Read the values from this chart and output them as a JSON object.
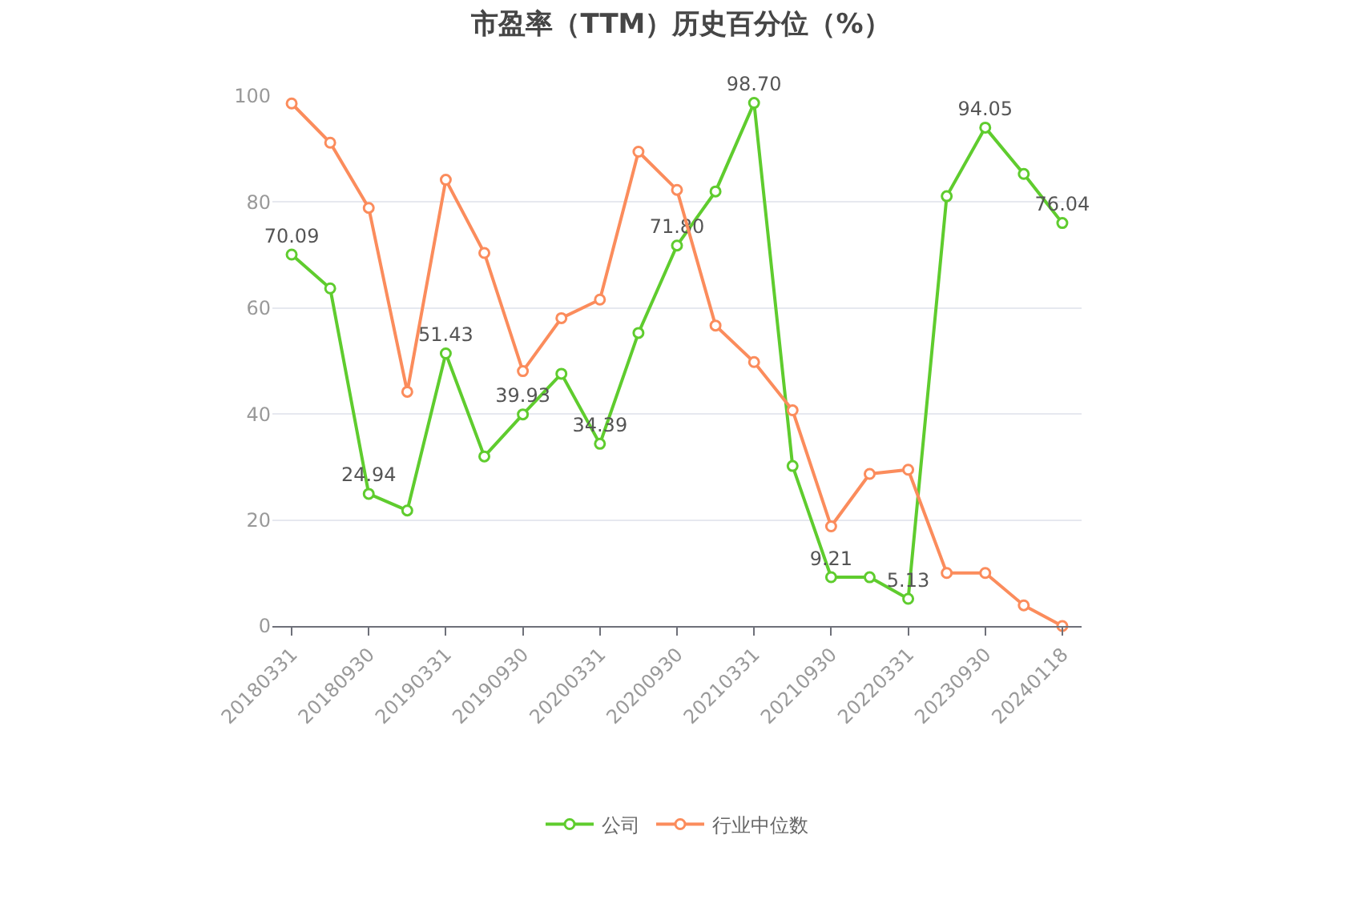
{
  "chart_data": {
    "type": "line",
    "title": "市盈率（TTM）历史百分位（%）",
    "categories": [
      "20180331",
      null,
      "20180930",
      null,
      "20190331",
      null,
      "20190930",
      null,
      "20200331",
      null,
      "20200930",
      null,
      "20210331",
      null,
      "20210930",
      null,
      "20220331",
      null,
      "20230930",
      null,
      "20240118"
    ],
    "series": [
      {
        "name": "公司",
        "color": "#5fcc2e",
        "values": [
          70.09,
          63.7,
          24.94,
          21.8,
          51.43,
          32.0,
          39.93,
          47.6,
          34.39,
          55.3,
          71.8,
          82.0,
          98.7,
          30.2,
          9.21,
          9.2,
          5.13,
          81.1,
          94.05,
          85.3,
          76.04
        ],
        "value_labels": [
          "70.09",
          null,
          "24.94",
          null,
          "51.43",
          null,
          "39.93",
          null,
          "34.39",
          null,
          "71.80",
          null,
          "98.70",
          null,
          "9.21",
          null,
          "5.13",
          null,
          "94.05",
          null,
          "76.04"
        ]
      },
      {
        "name": "行业中位数",
        "color": "#fb8c5c",
        "values": [
          98.6,
          91.2,
          78.9,
          44.2,
          84.2,
          70.4,
          48.1,
          58.1,
          61.6,
          89.5,
          82.3,
          56.7,
          49.8,
          40.7,
          18.8,
          28.7,
          29.5,
          10.0,
          10.0,
          3.9,
          0
        ]
      }
    ],
    "ylim": [
      0,
      100
    ],
    "yticks": [
      0,
      20,
      40,
      60,
      80,
      100
    ],
    "grid": "y",
    "legend": "bottom",
    "marker": "circle",
    "line_style": "solid"
  }
}
